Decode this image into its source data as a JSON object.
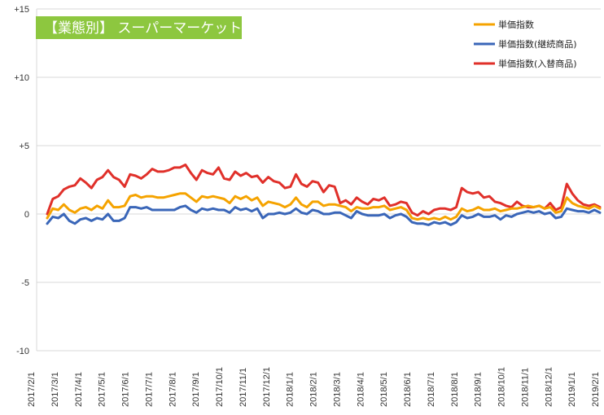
{
  "chart_data": {
    "type": "line",
    "title": "【業態別】 スーパーマーケット",
    "title_bg": "#8DC73F",
    "ylim": [
      -10,
      15
    ],
    "yticks": [
      {
        "value": 15,
        "label": "+15"
      },
      {
        "value": 10,
        "label": "+10"
      },
      {
        "value": 5,
        "label": "+5"
      },
      {
        "value": 0,
        "label": "0"
      },
      {
        "value": -5,
        "label": "-5"
      },
      {
        "value": -10,
        "label": "-10"
      }
    ],
    "xticks": [
      "2017/2/1",
      "2017/3/1",
      "2017/4/1",
      "2017/5/1",
      "2017/6/1",
      "2017/7/1",
      "2017/8/1",
      "2017/9/1",
      "2017/10/1",
      "2017/11/1",
      "2017/12/1",
      "2018/1/1",
      "2018/2/1",
      "2018/3/1",
      "2018/4/1",
      "2018/5/1",
      "2018/6/1",
      "2018/7/1",
      "2018/8/1",
      "2018/9/1",
      "2018/10/1",
      "2018/11/1",
      "2018/12/1",
      "2019/1/1",
      "2019/2/1"
    ],
    "grid": "horizontal",
    "legend_position": "top-right",
    "series": [
      {
        "name": "単価指数",
        "color": "#F5A300",
        "values": [
          -0.3,
          0.4,
          0.3,
          0.7,
          0.3,
          0.1,
          0.4,
          0.5,
          0.3,
          0.6,
          0.4,
          1.0,
          0.5,
          0.5,
          0.6,
          1.3,
          1.4,
          1.2,
          1.3,
          1.3,
          1.2,
          1.2,
          1.3,
          1.4,
          1.5,
          1.5,
          1.2,
          0.9,
          1.3,
          1.2,
          1.3,
          1.2,
          1.1,
          0.8,
          1.3,
          1.1,
          1.3,
          1.0,
          1.2,
          0.6,
          0.9,
          0.8,
          0.7,
          0.5,
          0.7,
          1.2,
          0.7,
          0.5,
          0.9,
          0.9,
          0.6,
          0.7,
          0.7,
          0.6,
          0.5,
          0.2,
          0.5,
          0.4,
          0.4,
          0.5,
          0.5,
          0.6,
          0.3,
          0.4,
          0.5,
          0.3,
          -0.3,
          -0.4,
          -0.3,
          -0.4,
          -0.3,
          -0.4,
          -0.2,
          -0.4,
          -0.2,
          0.4,
          0.2,
          0.3,
          0.5,
          0.3,
          0.3,
          0.4,
          0.2,
          0.3,
          0.4,
          0.4,
          0.5,
          0.6,
          0.5,
          0.6,
          0.4,
          0.5,
          0.1,
          0.2,
          1.2,
          0.8,
          0.6,
          0.5,
          0.4,
          0.6,
          0.4
        ]
      },
      {
        "name": "単価指数(継続商品)",
        "color": "#3A66B8",
        "values": [
          -0.7,
          -0.2,
          -0.3,
          0.0,
          -0.5,
          -0.7,
          -0.4,
          -0.3,
          -0.5,
          -0.3,
          -0.4,
          0.0,
          -0.5,
          -0.5,
          -0.3,
          0.5,
          0.5,
          0.4,
          0.5,
          0.3,
          0.3,
          0.3,
          0.3,
          0.3,
          0.5,
          0.6,
          0.3,
          0.1,
          0.4,
          0.3,
          0.4,
          0.3,
          0.3,
          0.1,
          0.5,
          0.3,
          0.4,
          0.2,
          0.4,
          -0.3,
          0.0,
          0.0,
          0.1,
          0.0,
          0.1,
          0.4,
          0.1,
          0.0,
          0.3,
          0.2,
          0.0,
          0.0,
          0.1,
          0.1,
          -0.1,
          -0.3,
          0.2,
          0.0,
          -0.1,
          -0.1,
          -0.1,
          0.0,
          -0.3,
          -0.1,
          0.0,
          -0.2,
          -0.6,
          -0.7,
          -0.7,
          -0.8,
          -0.6,
          -0.7,
          -0.6,
          -0.8,
          -0.6,
          -0.1,
          -0.3,
          -0.2,
          0.0,
          -0.2,
          -0.2,
          -0.1,
          -0.4,
          -0.1,
          -0.2,
          0.0,
          0.1,
          0.2,
          0.1,
          0.2,
          0.0,
          0.1,
          -0.3,
          -0.2,
          0.4,
          0.3,
          0.2,
          0.2,
          0.1,
          0.3,
          0.1
        ]
      },
      {
        "name": "単価指数(入替商品)",
        "color": "#E0302A",
        "values": [
          0.0,
          1.1,
          1.3,
          1.8,
          2.0,
          2.1,
          2.6,
          2.3,
          1.9,
          2.5,
          2.7,
          3.2,
          2.7,
          2.5,
          2.0,
          2.9,
          2.8,
          2.6,
          2.9,
          3.3,
          3.1,
          3.1,
          3.2,
          3.4,
          3.4,
          3.6,
          3.0,
          2.5,
          3.2,
          3.0,
          2.9,
          3.4,
          2.6,
          2.5,
          3.1,
          2.8,
          3.0,
          2.7,
          2.8,
          2.3,
          2.7,
          2.4,
          2.3,
          1.9,
          2.0,
          2.9,
          2.2,
          2.0,
          2.4,
          2.3,
          1.6,
          2.1,
          2.0,
          0.8,
          1.0,
          0.7,
          1.2,
          0.9,
          0.7,
          1.1,
          1.0,
          1.2,
          0.6,
          0.7,
          0.9,
          0.8,
          0.1,
          -0.1,
          0.2,
          0.0,
          0.3,
          0.4,
          0.4,
          0.3,
          0.5,
          1.9,
          1.6,
          1.5,
          1.6,
          1.2,
          1.3,
          0.9,
          0.8,
          0.6,
          0.5,
          0.9,
          0.6,
          0.5,
          0.5,
          0.6,
          0.4,
          0.8,
          0.3,
          0.5,
          2.2,
          1.5,
          1.0,
          0.7,
          0.6,
          0.7,
          0.5
        ]
      }
    ]
  }
}
